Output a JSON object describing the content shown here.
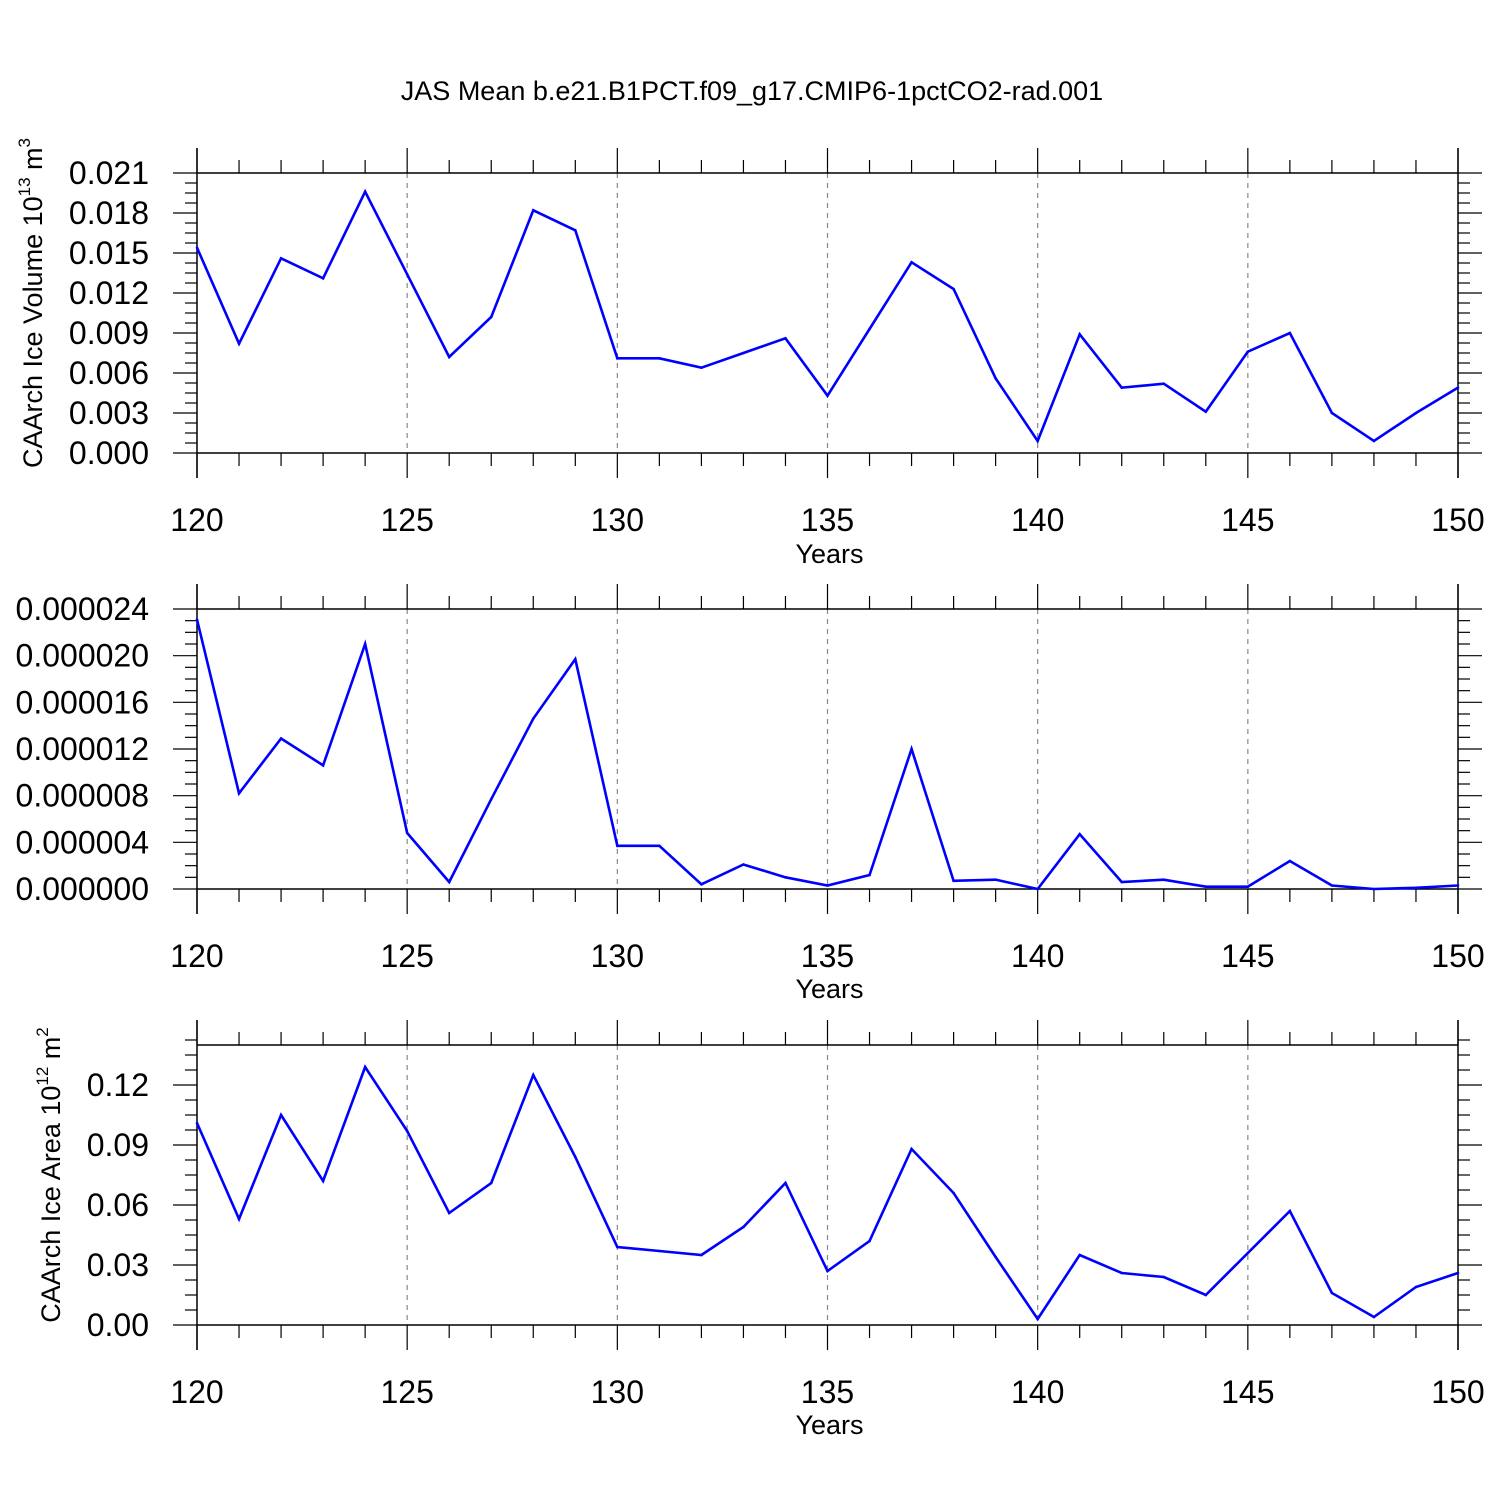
{
  "figure": {
    "title": "JAS Mean b.e21.B1PCT.f09_g17.CMIP6-1pctCO2-rad.001",
    "line_color": "#0000ff",
    "axis_color": "#000000",
    "grid_color": "#888888"
  },
  "chart_data": [
    {
      "type": "line",
      "title": "",
      "xlabel": "Years",
      "ylabel_main": "CAArch Ice Volume 10",
      "ylabel_exp": "13",
      "ylabel_unit": " m",
      "ylabel_unit_exp": "3",
      "xlim": [
        120,
        150
      ],
      "ylim": [
        0,
        0.021
      ],
      "xticks": [
        120,
        125,
        130,
        135,
        140,
        145,
        150
      ],
      "xtick_labels": [
        "120",
        "125",
        "130",
        "135",
        "140",
        "145",
        "150"
      ],
      "yticks": [
        0,
        0.003,
        0.006,
        0.009,
        0.012,
        0.015,
        0.018,
        0.021
      ],
      "ytick_labels": [
        "0.000",
        "0.003",
        "0.006",
        "0.009",
        "0.012",
        "0.015",
        "0.018",
        "0.021"
      ],
      "grid": "vertical dashed at major x ticks",
      "x": [
        120,
        121,
        122,
        123,
        124,
        125,
        126,
        127,
        128,
        129,
        130,
        131,
        132,
        133,
        134,
        135,
        136,
        137,
        138,
        139,
        140,
        141,
        142,
        143,
        144,
        145,
        146,
        147,
        148,
        149,
        150
      ],
      "series": [
        {
          "values": [
            0.0154,
            0.0082,
            0.0146,
            0.0131,
            0.0196,
            0.0134,
            0.0072,
            0.0102,
            0.0182,
            0.0167,
            0.0071,
            0.0071,
            0.0064,
            0.0075,
            0.0086,
            0.0043,
            0.0093,
            0.0143,
            0.0123,
            0.0056,
            0.0009,
            0.0089,
            0.0049,
            0.0052,
            0.0031,
            0.0076,
            0.009,
            0.003,
            0.0009,
            0.003,
            0.0049
          ]
        }
      ]
    },
    {
      "type": "line",
      "title": "",
      "xlabel": "Years",
      "ylabel_main": "",
      "ylabel_exp": "",
      "ylabel_unit": "",
      "ylabel_unit_exp": "",
      "xlim": [
        120,
        150
      ],
      "ylim": [
        0,
        2.4e-05
      ],
      "xticks": [
        120,
        125,
        130,
        135,
        140,
        145,
        150
      ],
      "xtick_labels": [
        "120",
        "125",
        "130",
        "135",
        "140",
        "145",
        "150"
      ],
      "yticks": [
        0,
        4e-06,
        8e-06,
        1.2e-05,
        1.6e-05,
        2e-05,
        2.4e-05
      ],
      "ytick_labels": [
        "0.000000",
        "0.000004",
        "0.000008",
        "0.000012",
        "0.000016",
        "0.000020",
        "0.000024"
      ],
      "grid": "vertical dashed at major x ticks",
      "x": [
        120,
        121,
        122,
        123,
        124,
        125,
        126,
        127,
        128,
        129,
        130,
        131,
        132,
        133,
        134,
        135,
        136,
        137,
        138,
        139,
        140,
        141,
        142,
        143,
        144,
        145,
        146,
        147,
        148,
        149,
        150
      ],
      "series": [
        {
          "values": [
            2.31e-05,
            8.2e-06,
            1.29e-05,
            1.06e-05,
            2.1e-05,
            4.8e-06,
            6e-07,
            7.7e-06,
            1.46e-05,
            1.97e-05,
            3.7e-06,
            3.7e-06,
            4e-07,
            2.1e-06,
            1e-06,
            3e-07,
            1.2e-06,
            1.2e-05,
            7e-07,
            8e-07,
            0.0,
            4.7e-06,
            6e-07,
            8e-07,
            2e-07,
            2e-07,
            2.4e-06,
            3e-07,
            0.0,
            1e-07,
            3e-07
          ]
        }
      ]
    },
    {
      "type": "line",
      "title": "",
      "xlabel": "Years",
      "ylabel_main": "CAArch Ice Area 10",
      "ylabel_exp": "12",
      "ylabel_unit": " m",
      "ylabel_unit_exp": "2",
      "xlim": [
        120,
        150
      ],
      "ylim": [
        0,
        0.14
      ],
      "xticks": [
        120,
        125,
        130,
        135,
        140,
        145,
        150
      ],
      "xtick_labels": [
        "120",
        "125",
        "130",
        "135",
        "140",
        "145",
        "150"
      ],
      "yticks": [
        0,
        0.03,
        0.06,
        0.09,
        0.12
      ],
      "ytick_labels": [
        "0.00",
        "0.03",
        "0.06",
        "0.09",
        "0.12"
      ],
      "grid": "vertical dashed at major x ticks",
      "x": [
        120,
        121,
        122,
        123,
        124,
        125,
        126,
        127,
        128,
        129,
        130,
        131,
        132,
        133,
        134,
        135,
        136,
        137,
        138,
        139,
        140,
        141,
        142,
        143,
        144,
        145,
        146,
        147,
        148,
        149,
        150
      ],
      "series": [
        {
          "values": [
            0.101,
            0.053,
            0.105,
            0.072,
            0.129,
            0.097,
            0.056,
            0.071,
            0.125,
            0.084,
            0.039,
            0.037,
            0.035,
            0.049,
            0.071,
            0.027,
            0.042,
            0.088,
            0.066,
            0.034,
            0.003,
            0.035,
            0.026,
            0.024,
            0.015,
            0.036,
            0.057,
            0.016,
            0.004,
            0.019,
            0.026
          ]
        }
      ]
    }
  ]
}
